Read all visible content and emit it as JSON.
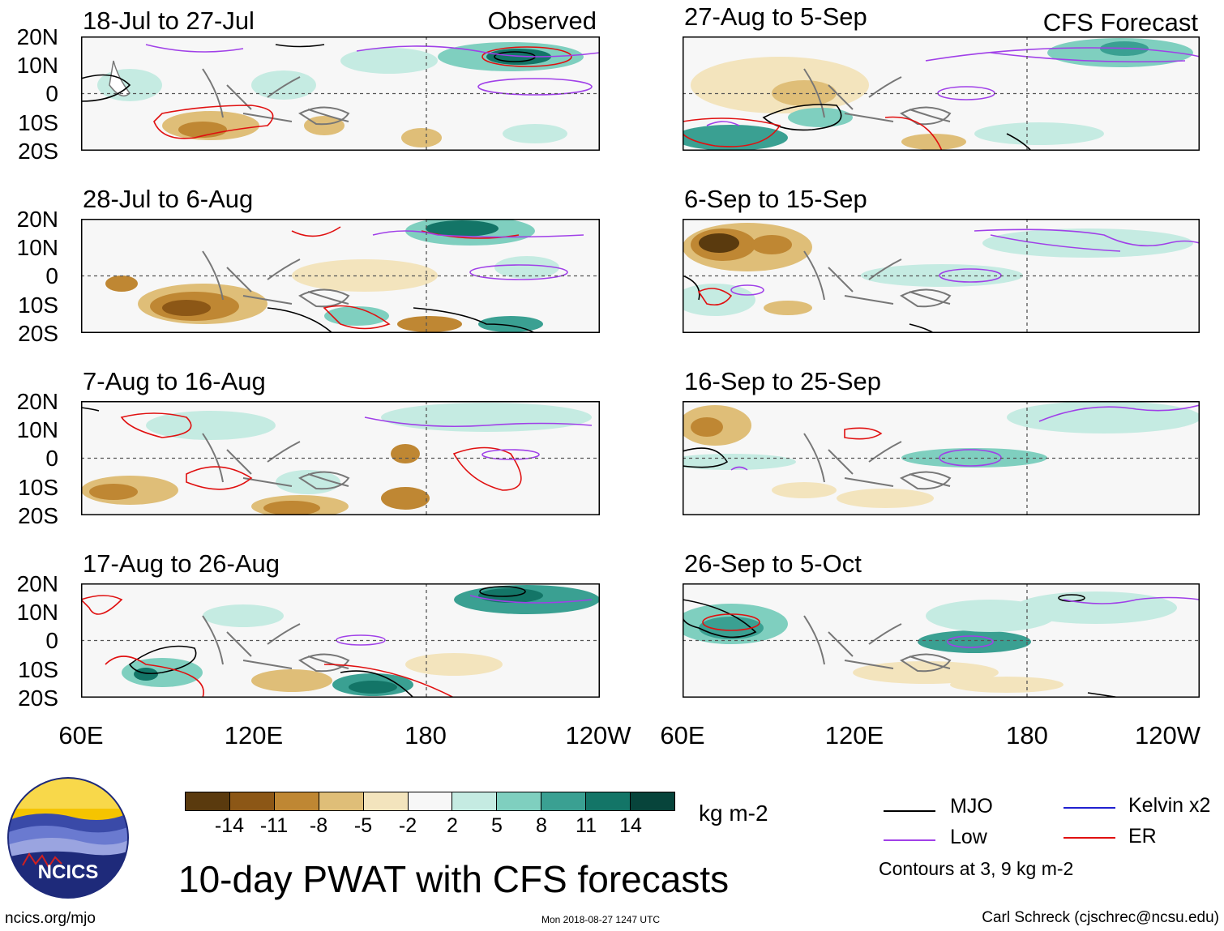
{
  "header": {
    "observed_label": "Observed",
    "forecast_label": "CFS Forecast"
  },
  "panels": {
    "observed": [
      {
        "title": "18-Jul to 27-Jul"
      },
      {
        "title": "28-Jul to 6-Aug"
      },
      {
        "title": "7-Aug to 16-Aug"
      },
      {
        "title": "17-Aug to 26-Aug"
      }
    ],
    "forecast": [
      {
        "title": "27-Aug to 5-Sep"
      },
      {
        "title": "6-Sep to 15-Sep"
      },
      {
        "title": "16-Sep to 25-Sep"
      },
      {
        "title": "26-Sep to 5-Oct"
      }
    ]
  },
  "axes": {
    "lat_labels": [
      "20N",
      "10N",
      "0",
      "10S",
      "20S"
    ],
    "lon_labels": [
      "60E",
      "120E",
      "180",
      "120W"
    ]
  },
  "colorbar": {
    "ticks": [
      "-14",
      "-11",
      "-8",
      "-5",
      "-2",
      "2",
      "5",
      "8",
      "11",
      "14"
    ],
    "colors": [
      "#5a3a0e",
      "#8c5716",
      "#bf8733",
      "#dfbe78",
      "#f3e4bd",
      "#f7f7f7",
      "#c5ebe2",
      "#7fcfbf",
      "#3aa092",
      "#137567",
      "#07443b"
    ],
    "unit": "kg m-2"
  },
  "legend": {
    "mjo": {
      "label": "MJO",
      "color": "#000000"
    },
    "low": {
      "label": "Low",
      "color": "#a040e8"
    },
    "kelvin": {
      "label": "Kelvin x2",
      "color": "#2020d0"
    },
    "er": {
      "label": "ER",
      "color": "#e01010"
    },
    "contours_note": "Contours at 3, 9 kg m-2"
  },
  "footer": {
    "main_title": "10-day PWAT with CFS forecasts",
    "logo_text": "NCICS",
    "url": "ncics.org/mjo",
    "timestamp": "Mon 2018-08-27 1247 UTC",
    "credit": "Carl Schreck (cjschrec@ncsu.edu)"
  }
}
